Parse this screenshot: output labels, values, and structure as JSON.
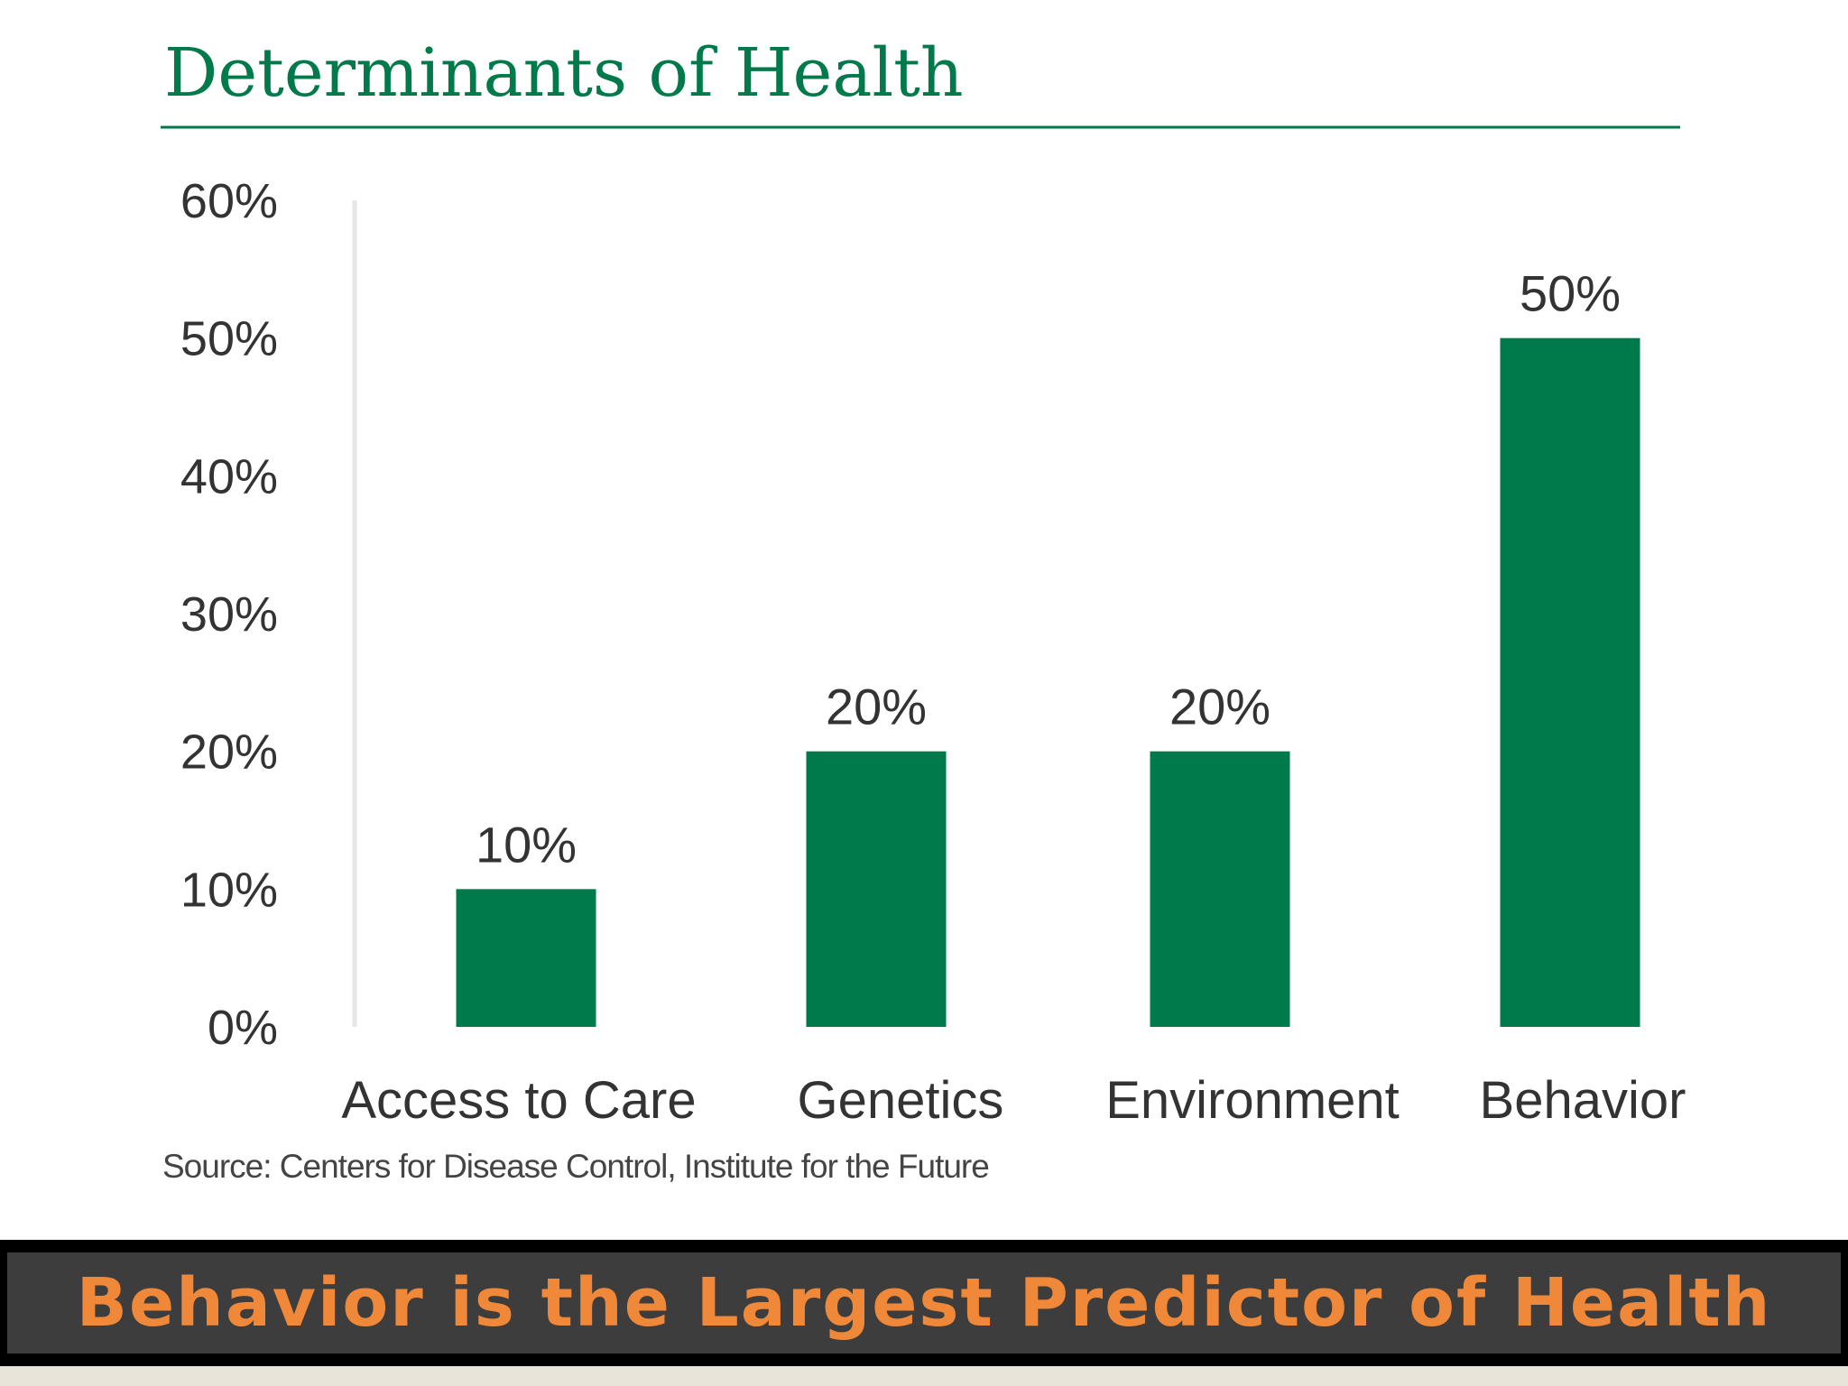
{
  "chart_data": {
    "type": "bar",
    "title": "Determinants of Health",
    "categories": [
      "Access to Care",
      "Genetics",
      "Environment",
      "Behavior"
    ],
    "values": [
      10,
      20,
      20,
      50
    ],
    "data_labels": [
      "10%",
      "20%",
      "20%",
      "50%"
    ],
    "y_ticks": [
      0,
      10,
      20,
      30,
      40,
      50,
      60
    ],
    "y_tick_labels": [
      "0%",
      "10%",
      "20%",
      "30%",
      "40%",
      "50%",
      "60%"
    ],
    "ylim": [
      0,
      60
    ],
    "xlabel": "",
    "ylabel": "",
    "grid": false,
    "legend": "none",
    "bar_color": "#007a4a",
    "source": "Source: Centers for Disease Control, Institute for the Future"
  },
  "banner": {
    "text": "Behavior is the Largest Predictor of Health",
    "text_color": "#f0883a"
  },
  "colors": {
    "title": "#007a4a",
    "rule": "#007a4a",
    "axis": "#e6e6e6"
  }
}
